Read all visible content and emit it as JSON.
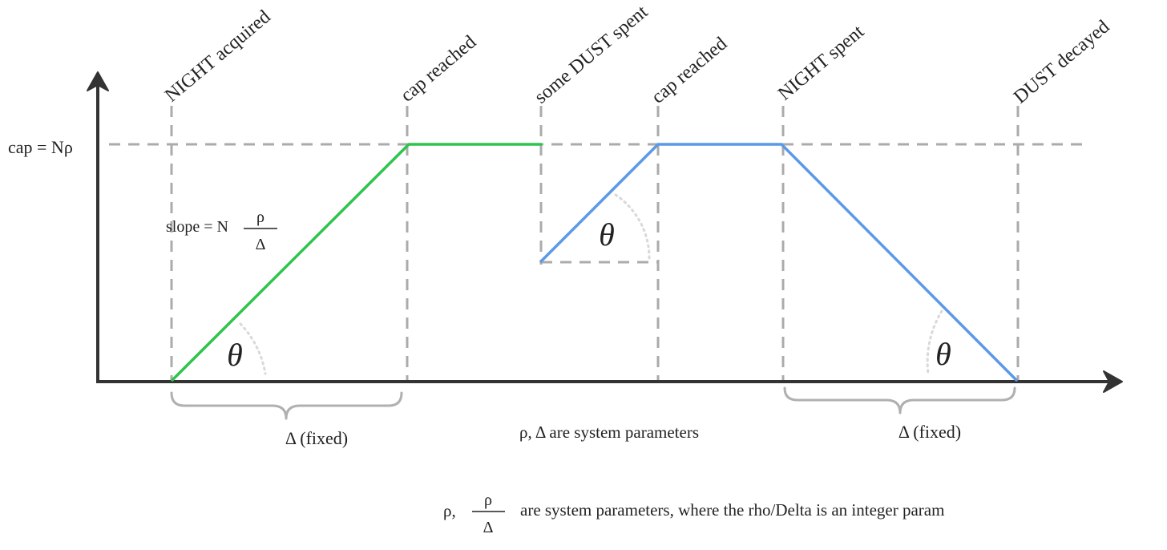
{
  "events": [
    {
      "key": "night_acquired",
      "label": "NIGHT acquired"
    },
    {
      "key": "cap_reached_1",
      "label": "cap reached"
    },
    {
      "key": "dust_spent",
      "label": "some DUST spent"
    },
    {
      "key": "cap_reached_2",
      "label": "cap reached"
    },
    {
      "key": "night_spent",
      "label": "NIGHT spent"
    },
    {
      "key": "dust_decayed",
      "label": "DUST decayed"
    }
  ],
  "cap_label": "cap = Nρ",
  "slope": {
    "prefix": "slope = N",
    "numerator": "ρ",
    "denominator": "Δ"
  },
  "theta": "θ",
  "brace_left_label": "Δ (fixed)",
  "brace_right_label": "Δ (fixed)",
  "params_note": "ρ, Δ are system parameters",
  "footnote": {
    "prefix": "ρ,",
    "numerator": "ρ",
    "denominator": "Δ",
    "suffix": "are system parameters, where the rho/Delta is an integer param"
  },
  "colors": {
    "first_line": "#2ec44e",
    "second_line": "#5b99e8",
    "axis": "#333333",
    "guides": "#ababab"
  }
}
